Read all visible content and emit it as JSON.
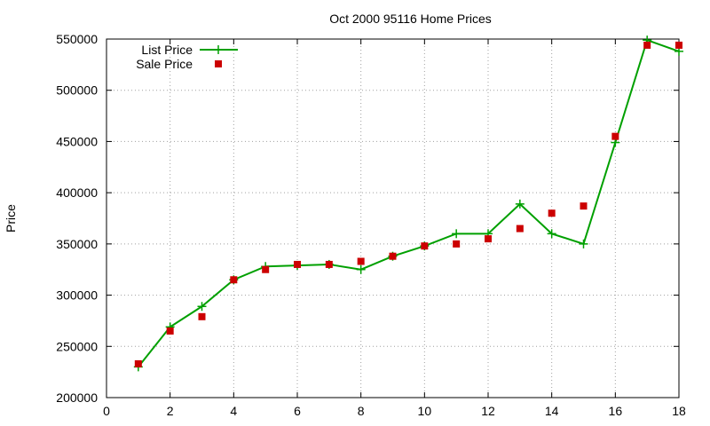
{
  "chart_data": {
    "type": "line",
    "title": "Oct 2000 95116 Home Prices",
    "xlabel": "",
    "ylabel": "Price",
    "xlim": [
      0,
      18
    ],
    "ylim": [
      200000,
      550000
    ],
    "x_ticks": [
      0,
      2,
      4,
      6,
      8,
      10,
      12,
      14,
      16,
      18
    ],
    "y_ticks": [
      200000,
      250000,
      300000,
      350000,
      400000,
      450000,
      500000,
      550000
    ],
    "x_tick_labels": [
      "0",
      "2",
      "4",
      "6",
      "8",
      "10",
      "12",
      "14",
      "16",
      "18"
    ],
    "y_tick_labels": [
      "200000",
      "250000",
      "300000",
      "350000",
      "400000",
      "450000",
      "500000",
      "550000"
    ],
    "grid": true,
    "legend_position": "top-left",
    "x": [
      1,
      2,
      3,
      4,
      5,
      6,
      7,
      8,
      9,
      10,
      11,
      12,
      13,
      14,
      15,
      16,
      17,
      18
    ],
    "series": [
      {
        "name": "List Price",
        "style": "line-points",
        "color": "#00a000",
        "values": [
          230000,
          269000,
          289000,
          315000,
          328000,
          329000,
          330000,
          325000,
          338000,
          348000,
          360000,
          360000,
          389000,
          360000,
          350000,
          449000,
          549000,
          538000
        ]
      },
      {
        "name": "Sale Price",
        "style": "points",
        "color": "#cc0000",
        "values": [
          233000,
          265000,
          279000,
          315000,
          325000,
          330000,
          330000,
          333000,
          338000,
          348000,
          350000,
          355000,
          365000,
          380000,
          387000,
          455000,
          544000,
          544000
        ]
      }
    ]
  }
}
